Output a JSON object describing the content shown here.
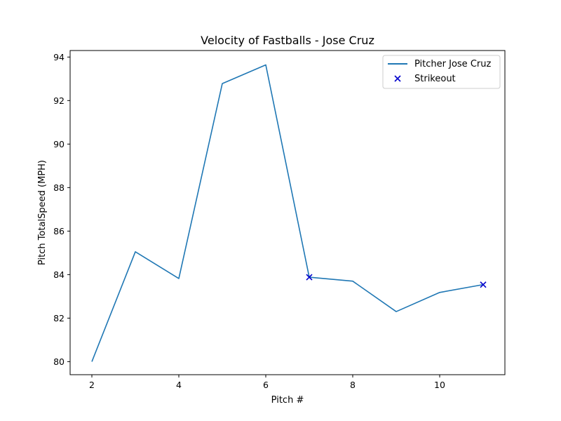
{
  "chart_data": {
    "type": "line",
    "title": "Velocity of Fastballs - Jose Cruz",
    "xlabel": "Pitch #",
    "ylabel": "Pitch TotalSpeed (MPH)",
    "xlim": [
      1.5,
      11.5
    ],
    "ylim": [
      79.4,
      94.3
    ],
    "xticks": [
      2,
      4,
      6,
      8,
      10
    ],
    "yticks": [
      80,
      82,
      84,
      86,
      88,
      90,
      92,
      94
    ],
    "grid": false,
    "legend_position": "top-right",
    "series": [
      {
        "name": "Pitcher Jose Cruz",
        "type": "line",
        "color": "#1f77b4",
        "x": [
          2,
          3,
          4,
          5,
          6,
          7,
          8,
          9,
          10,
          11
        ],
        "y": [
          80.0,
          85.05,
          83.82,
          92.78,
          93.64,
          83.88,
          83.7,
          82.3,
          83.18,
          83.54
        ]
      },
      {
        "name": "Strikeout",
        "type": "scatter",
        "marker": "x",
        "color": "#0000cc",
        "x": [
          7,
          11
        ],
        "y": [
          83.88,
          83.54
        ]
      }
    ]
  }
}
